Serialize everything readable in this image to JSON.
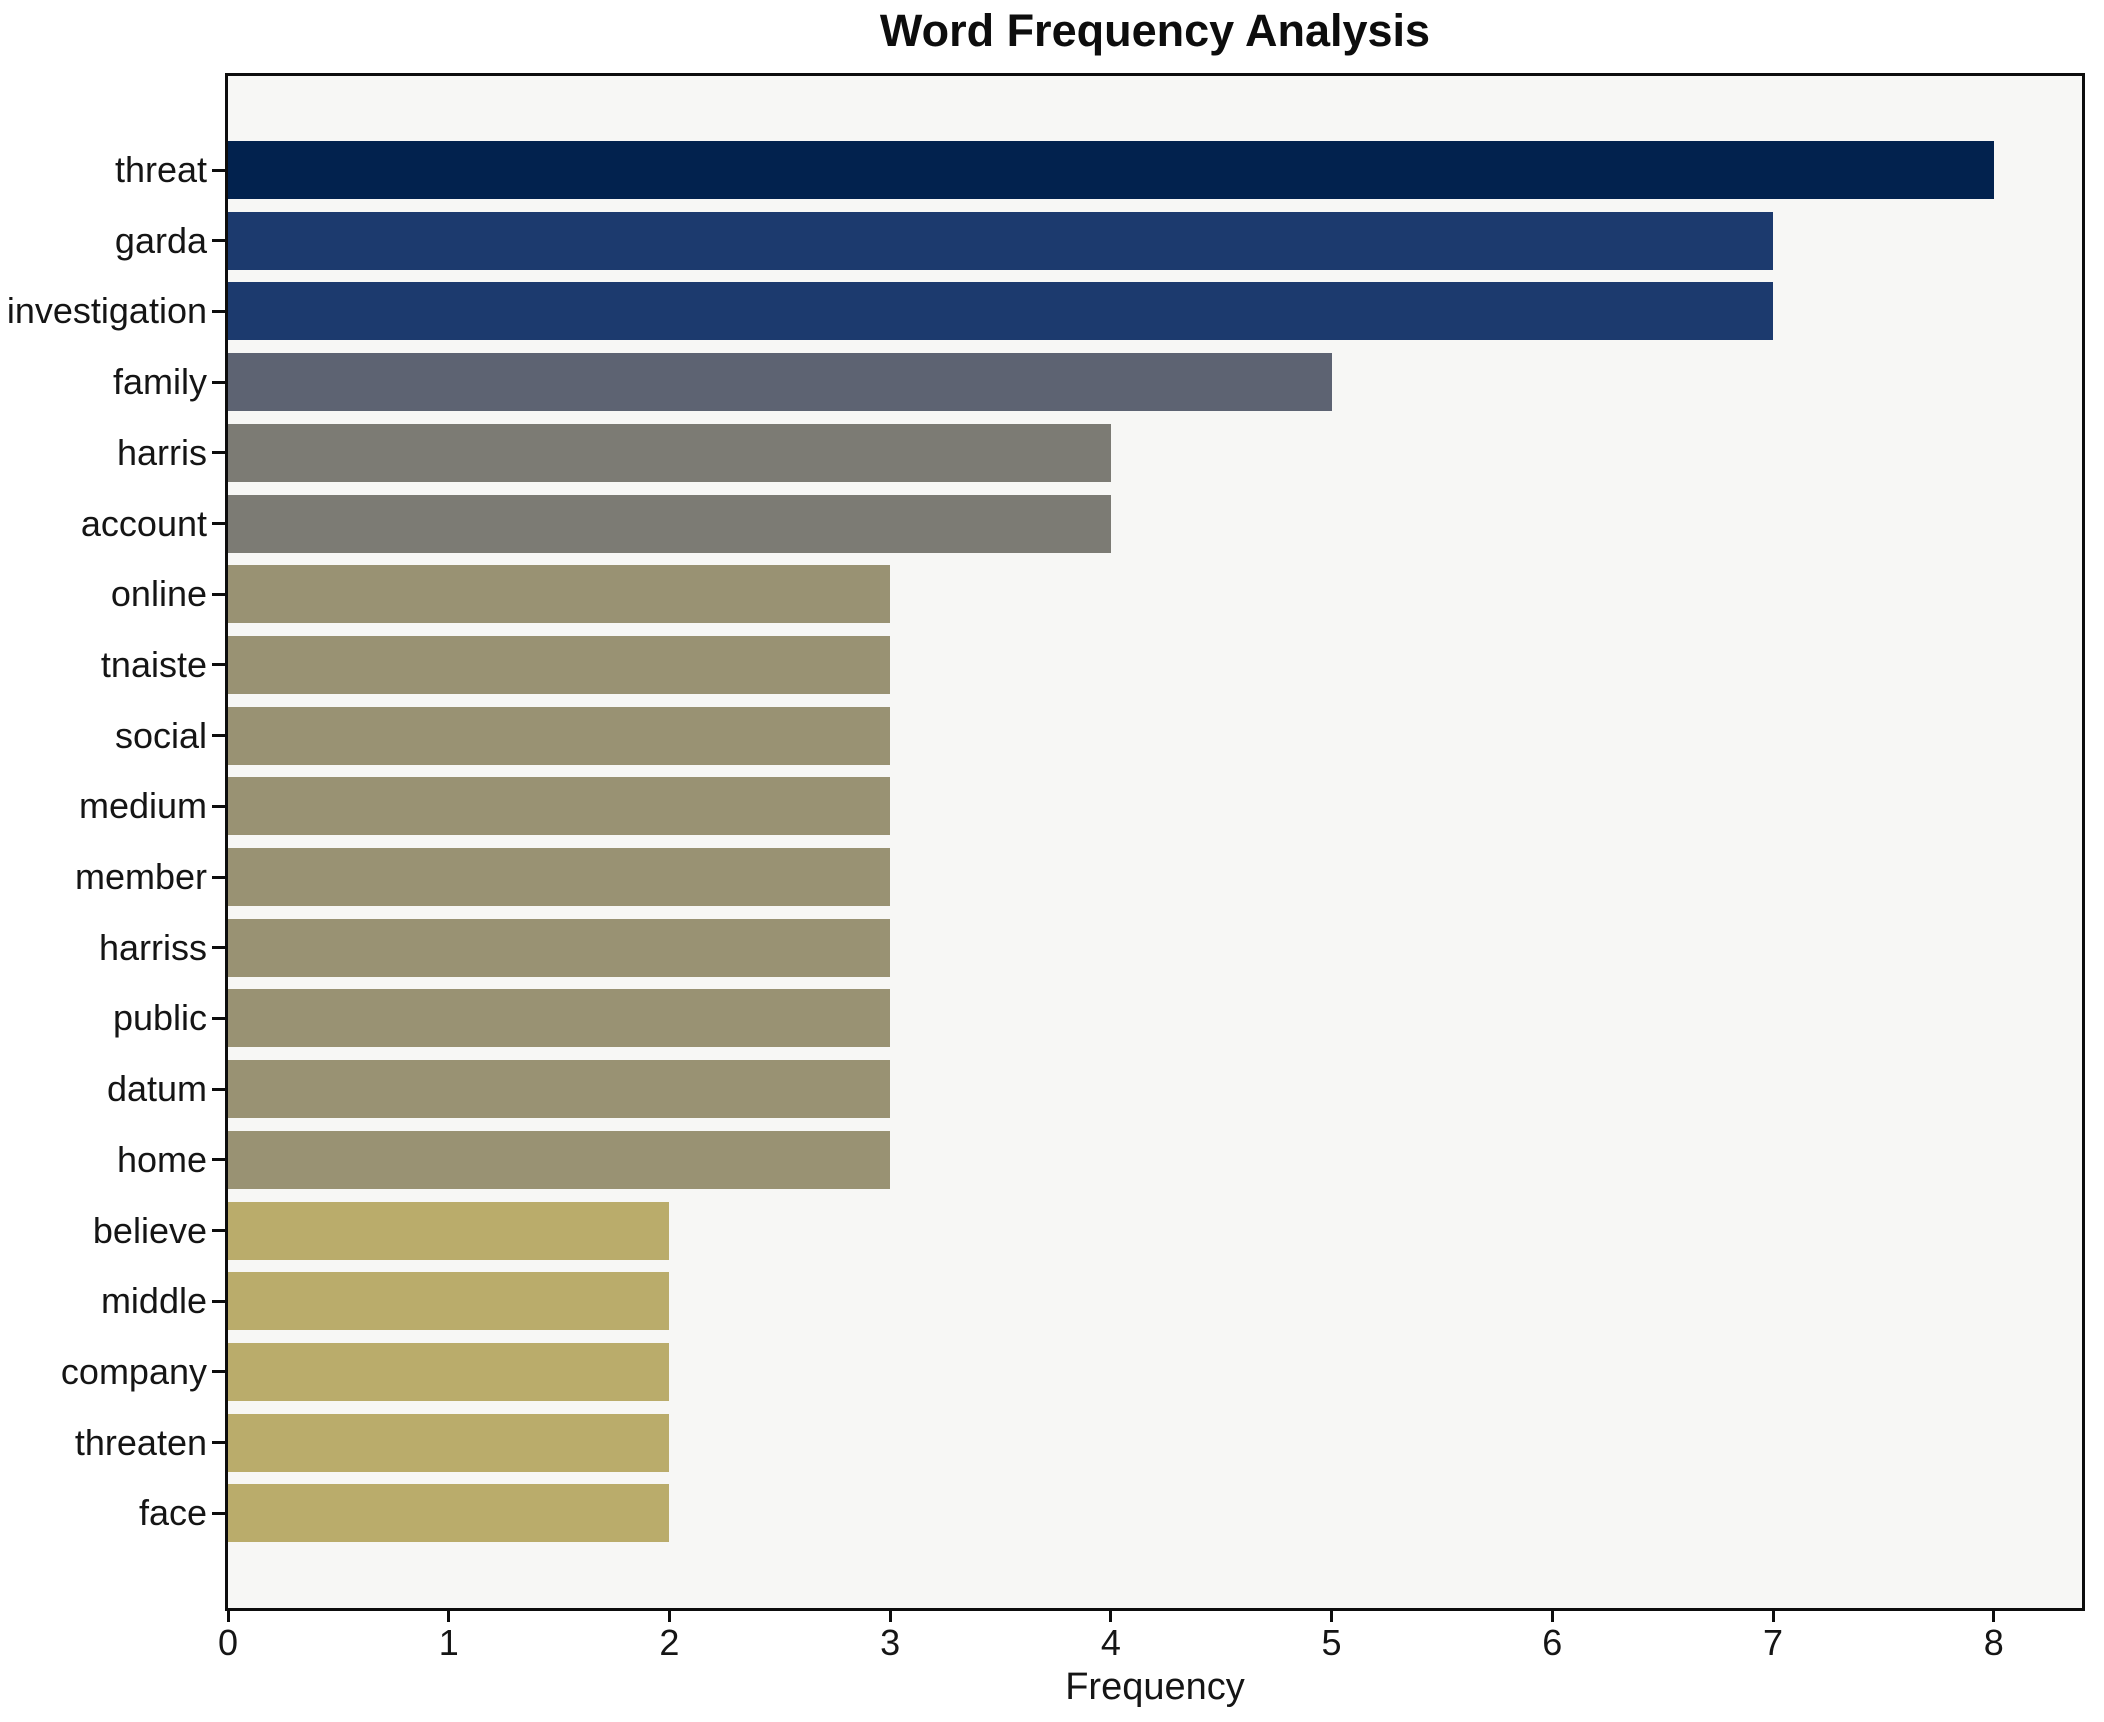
{
  "chart_data": {
    "type": "bar",
    "orientation": "horizontal",
    "title": "Word Frequency Analysis",
    "xlabel": "Frequency",
    "ylabel": "",
    "categories": [
      "threat",
      "garda",
      "investigation",
      "family",
      "harris",
      "account",
      "online",
      "tnaiste",
      "social",
      "medium",
      "member",
      "harriss",
      "public",
      "datum",
      "home",
      "believe",
      "middle",
      "company",
      "threaten",
      "face"
    ],
    "values": [
      8,
      7,
      7,
      5,
      4,
      4,
      3,
      3,
      3,
      3,
      3,
      3,
      3,
      3,
      3,
      2,
      2,
      2,
      2,
      2
    ],
    "bar_colors": [
      "#02224e",
      "#1c3a6e",
      "#1c3a6e",
      "#5d6372",
      "#7c7b74",
      "#7c7b74",
      "#999273",
      "#999273",
      "#999273",
      "#999273",
      "#999273",
      "#999273",
      "#999273",
      "#999273",
      "#999273",
      "#baac6b",
      "#baac6b",
      "#baac6b",
      "#baac6b",
      "#baac6b"
    ],
    "xlim": [
      0,
      8.4
    ],
    "xticks": [
      0,
      1,
      2,
      3,
      4,
      5,
      6,
      7,
      8
    ],
    "grid": false,
    "legend_position": "none",
    "plot_background": "#f7f7f5",
    "figure_background": "#ffffff",
    "spine_color": "#0d0d0d",
    "text_color": "#151515"
  }
}
